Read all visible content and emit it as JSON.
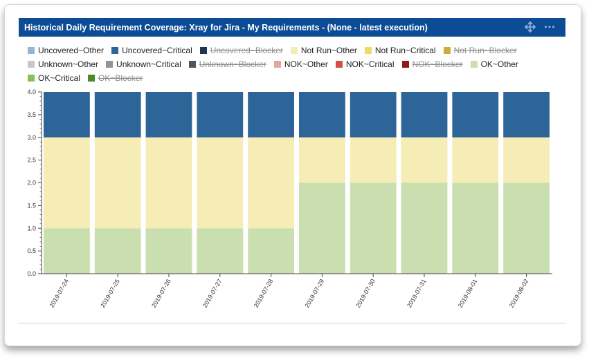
{
  "header": {
    "title": "Historical Daily Requirement Coverage: Xray for Jira - My Requirements - (None - latest execution)",
    "move_icon": "move-arrows-icon",
    "more_icon": "more-dots-icon",
    "background_color": "#0c4b96"
  },
  "legend": [
    {
      "label": "Uncovered~Other",
      "color": "#94b6d2",
      "hidden": false
    },
    {
      "label": "Uncovered~Critical",
      "color": "#2e6599",
      "hidden": false
    },
    {
      "label": "Uncovered~Blocker",
      "color": "#1f3655",
      "hidden": true
    },
    {
      "label": "Not Run~Other",
      "color": "#f5ecb6",
      "hidden": false
    },
    {
      "label": "Not Run~Critical",
      "color": "#f1da63",
      "hidden": false
    },
    {
      "label": "Not Run~Blocker",
      "color": "#c9ae39",
      "hidden": true
    },
    {
      "label": "Unknown~Other",
      "color": "#c8c8c8",
      "hidden": false
    },
    {
      "label": "Unknown~Critical",
      "color": "#8f959b",
      "hidden": false
    },
    {
      "label": "Unknown~Blocker",
      "color": "#4f545a",
      "hidden": true
    },
    {
      "label": "NOK~Other",
      "color": "#e8a59d",
      "hidden": false
    },
    {
      "label": "NOK~Critical",
      "color": "#d64f45",
      "hidden": false
    },
    {
      "label": "NOK~Blocker",
      "color": "#8c1b1b",
      "hidden": true
    },
    {
      "label": "OK~Other",
      "color": "#cadfb0",
      "hidden": false
    },
    {
      "label": "OK~Critical",
      "color": "#86c05a",
      "hidden": false
    },
    {
      "label": "OK~Blocker",
      "color": "#4a8a2c",
      "hidden": true
    }
  ],
  "chart_data": {
    "type": "bar",
    "stacked": true,
    "categories": [
      "2019-07-24",
      "2019-07-25",
      "2019-07-26",
      "2019-07-27",
      "2019-07-28",
      "2019-07-29",
      "2019-07-30",
      "2019-07-31",
      "2019-08-01",
      "2019-08-02"
    ],
    "series": [
      {
        "name": "OK~Other",
        "color": "#cadfb0",
        "values": [
          1,
          1,
          1,
          1,
          1,
          2,
          2,
          2,
          2,
          2
        ]
      },
      {
        "name": "Not Run~Other",
        "color": "#f5ecb6",
        "values": [
          2,
          2,
          2,
          2,
          2,
          1,
          1,
          1,
          1,
          1
        ]
      },
      {
        "name": "Uncovered~Critical",
        "color": "#2e6599",
        "values": [
          1,
          1,
          1,
          1,
          1,
          1,
          1,
          1,
          1,
          1
        ]
      }
    ],
    "ylim": [
      0,
      4.0
    ],
    "yticks": [
      "0.0",
      "0.5",
      "1.0",
      "1.5",
      "2.0",
      "2.5",
      "3.0",
      "3.5",
      "4.0"
    ],
    "xlabel": "",
    "ylabel": "",
    "grid": false,
    "legend_position": "top"
  }
}
